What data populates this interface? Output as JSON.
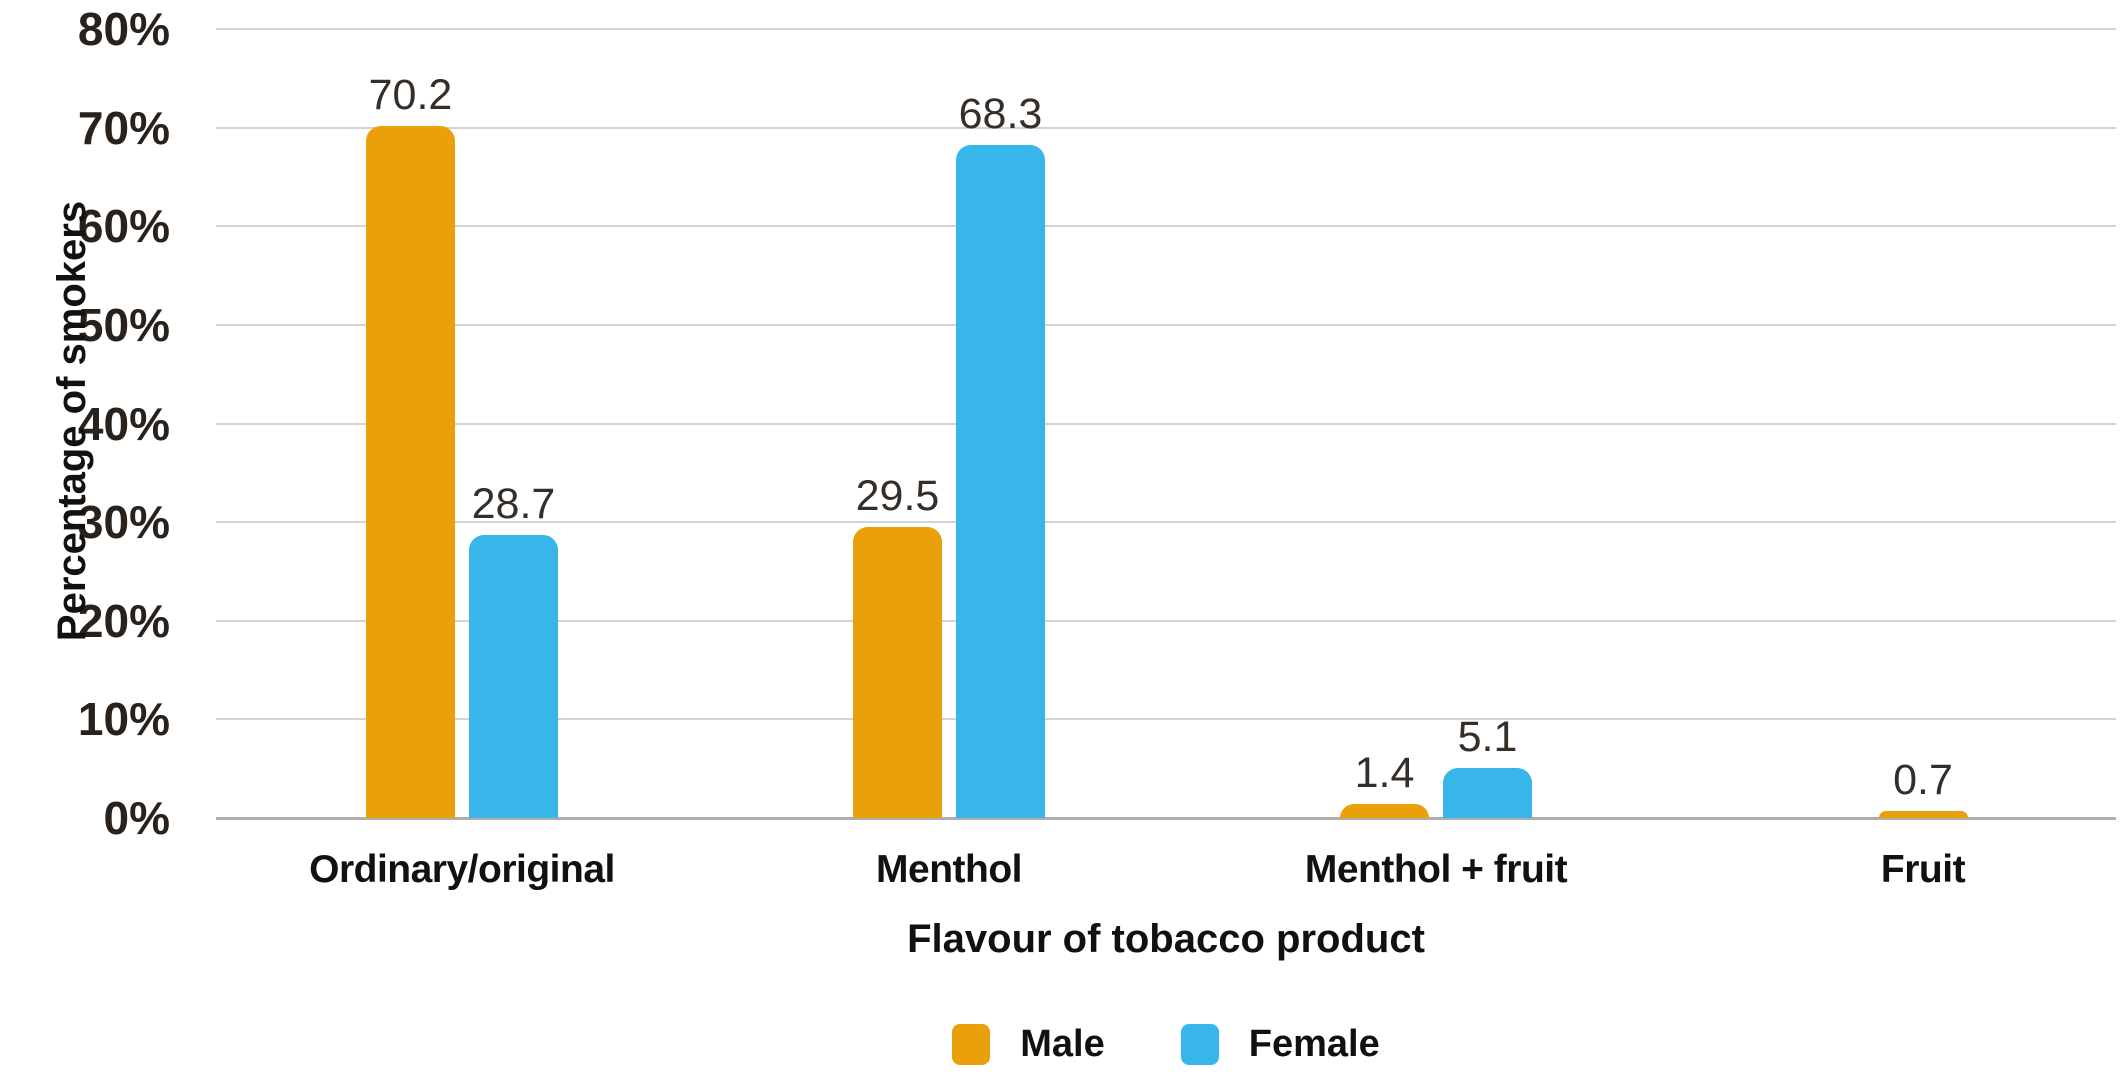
{
  "chart_data": {
    "type": "bar",
    "title": "",
    "categories": [
      "Ordinary/original",
      "Menthol",
      "Menthol + fruit",
      "Fruit"
    ],
    "series": [
      {
        "name": "Male",
        "color": "#EAA00B",
        "values": [
          70.2,
          29.5,
          1.4,
          0.7
        ]
      },
      {
        "name": "Female",
        "color": "#38B6E9",
        "values": [
          28.7,
          68.3,
          5.1,
          null
        ]
      }
    ],
    "value_labels_shown": true,
    "xlabel": "Flavour of tobacco product",
    "ylabel": "Percentage of smokers",
    "ylim": [
      0,
      80
    ],
    "ytick_step": 10,
    "ytick_labels": [
      "0%",
      "10%",
      "20%",
      "30%",
      "40%",
      "50%",
      "60%",
      "70%",
      "80%"
    ],
    "grid": "horizontal",
    "legend_position": "bottom"
  },
  "colors": {
    "male": "#EAA00B",
    "female": "#38B6E9",
    "gridline": "#D3D3D3",
    "axis_line": "#AFAEAC",
    "tick_text": "#29221C",
    "label_text": "#131010",
    "value_text": "#352E29",
    "background": "#FFFFFF"
  }
}
